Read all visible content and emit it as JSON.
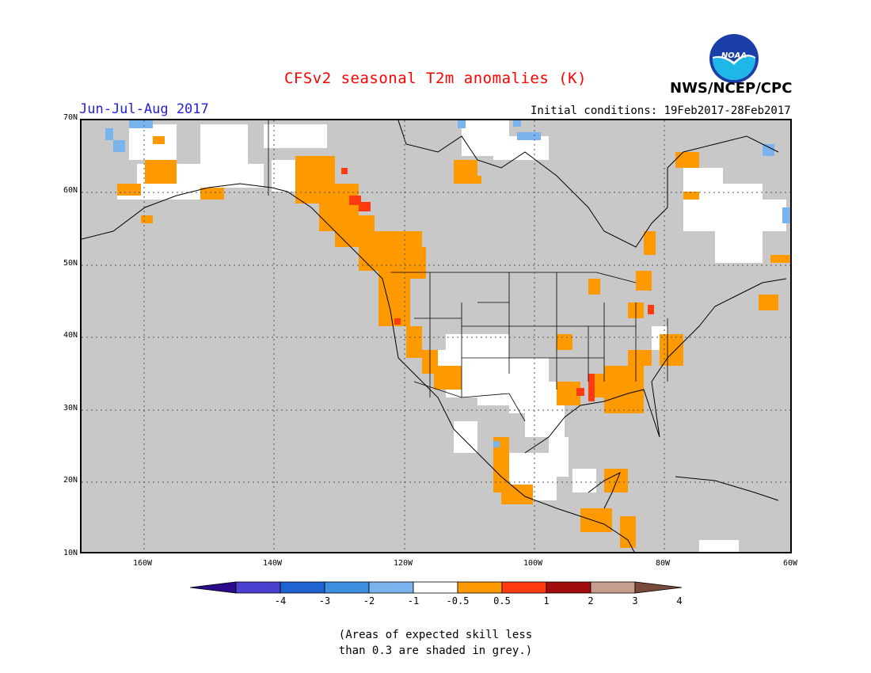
{
  "title": "CFSv2 seasonal T2m anomalies (K)",
  "season": "Jun-Jul-Aug 2017",
  "agency": "NWS/NCEP/CPC",
  "logo_text": "NOAA",
  "initial_conditions": "Initial conditions: 19Feb2017-28Feb2017",
  "lat_labels": [
    "70N",
    "60N",
    "50N",
    "40N",
    "30N",
    "20N",
    "10N"
  ],
  "lon_labels": [
    "160W",
    "140W",
    "120W",
    "100W",
    "80W",
    "60W"
  ],
  "colorbar": {
    "labels": [
      "-4",
      "-3",
      "-2",
      "-1",
      "-0.5",
      "0.5",
      "1",
      "2",
      "3",
      "4"
    ],
    "colors": [
      "#2b0a8e",
      "#4b3fcf",
      "#1f63d0",
      "#3e8ee0",
      "#7ab4ef",
      "#ffffff",
      "#ff9900",
      "#ff3a10",
      "#a10c0c",
      "#c79e8e",
      "#7a4a3a"
    ]
  },
  "note": [
    "(Areas of expected skill less",
    "than 0.3 are shaded in grey.)"
  ],
  "colors": {
    "skill_mask_grey": "#c8c8c8",
    "neutral": "#ffffff",
    "warm_0_5_to_1": "#ff9900",
    "warm_1_to_2": "#ff3a10",
    "cool_minus_0_5": "#7ab4ef",
    "cool_minus_1": "#3e8ee0"
  },
  "legend_note": "grey = skill < 0.3"
}
